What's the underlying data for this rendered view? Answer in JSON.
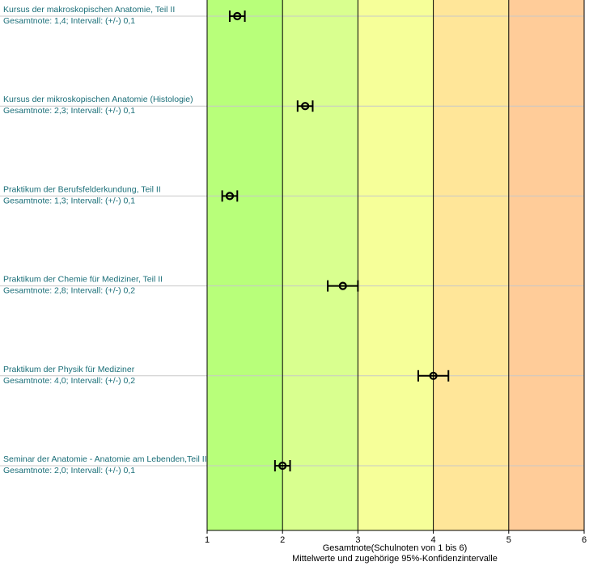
{
  "chart_data": {
    "type": "scatter",
    "orientation": "horizontal",
    "xlim": [
      1,
      6
    ],
    "xticks": [
      "1",
      "2",
      "3",
      "4",
      "5",
      "6"
    ],
    "xlabel_line1": "Gesamtnote(Schulnoten von 1 bis 6)",
    "xlabel_line2": "Mittelwerte und zugehörige 95%-Konfidenzintervalle",
    "grid": true,
    "bands": [
      {
        "from": 1,
        "to": 2,
        "color": "#b8ff7a"
      },
      {
        "from": 2,
        "to": 3,
        "color": "#d9ff8f"
      },
      {
        "from": 3,
        "to": 4,
        "color": "#f6ff99"
      },
      {
        "from": 4,
        "to": 5,
        "color": "#ffe699"
      },
      {
        "from": 5,
        "to": 6,
        "color": "#ffcc99"
      }
    ],
    "items": [
      {
        "label": "Kursus der makroskopischen Anatomie, Teil II",
        "detail": "Gesamtnote: 1,4;  Intervall: (+/-) 0,1",
        "mean": 1.4,
        "ci": 0.1
      },
      {
        "label": "Kursus der mikroskopischen Anatomie (Histologie)",
        "detail": "Gesamtnote: 2,3;  Intervall: (+/-) 0,1",
        "mean": 2.3,
        "ci": 0.1
      },
      {
        "label": "Praktikum der Berufsfelderkundung, Teil II",
        "detail": "Gesamtnote: 1,3;  Intervall: (+/-) 0,1",
        "mean": 1.3,
        "ci": 0.1
      },
      {
        "label": "Praktikum der Chemie für Mediziner, Teil II",
        "detail": "Gesamtnote: 2,8;  Intervall: (+/-) 0,2",
        "mean": 2.8,
        "ci": 0.2
      },
      {
        "label": "Praktikum der Physik für Mediziner",
        "detail": "Gesamtnote: 4,0;  Intervall: (+/-) 0,2",
        "mean": 4.0,
        "ci": 0.2
      },
      {
        "label": "Seminar der Anatomie - Anatomie am Lebenden,Teil II",
        "detail": "Gesamtnote: 2,0;  Intervall: (+/-) 0,1",
        "mean": 2.0,
        "ci": 0.1
      }
    ]
  }
}
